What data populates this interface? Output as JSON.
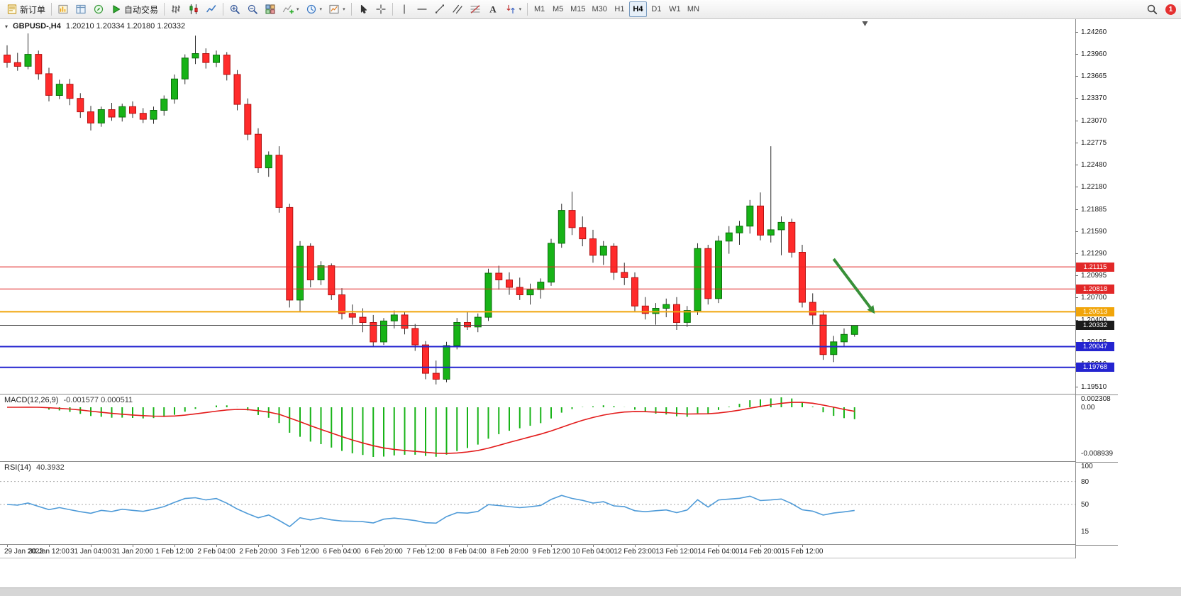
{
  "toolbar": {
    "buttons": [
      {
        "name": "new-order",
        "icon": "new-order",
        "label": "新订单"
      },
      {
        "sep": true
      },
      {
        "name": "market-watch",
        "icon": "market-watch"
      },
      {
        "name": "data-window",
        "icon": "data-window"
      },
      {
        "name": "navigator",
        "icon": "navigator"
      },
      {
        "name": "autotrade",
        "icon": "autotrade-play",
        "label": "自动交易"
      },
      {
        "sep": true
      },
      {
        "name": "chart-bars",
        "icon": "chart-bars"
      },
      {
        "name": "chart-candles",
        "icon": "chart-candles"
      },
      {
        "name": "chart-line",
        "icon": "chart-line"
      },
      {
        "sep": true
      },
      {
        "name": "zoom-in",
        "icon": "zoom-in"
      },
      {
        "name": "zoom-out",
        "icon": "zoom-out"
      },
      {
        "name": "tile-windows",
        "icon": "tile-windows"
      },
      {
        "name": "indicators",
        "icon": "indicators-add",
        "caret": true
      },
      {
        "name": "periods",
        "icon": "periods-clock",
        "caret": true
      },
      {
        "name": "templates",
        "icon": "template-chart",
        "caret": true
      },
      {
        "sep": true
      },
      {
        "name": "cursor",
        "icon": "cursor"
      },
      {
        "name": "crosshair",
        "icon": "crosshair"
      },
      {
        "sep": true
      },
      {
        "name": "vertical-line",
        "icon": "vline"
      },
      {
        "name": "horizontal-line",
        "icon": "hline"
      },
      {
        "name": "trendline",
        "icon": "trendline"
      },
      {
        "name": "equidistant-channel",
        "icon": "channel"
      },
      {
        "name": "fibonacci",
        "icon": "fibonacci"
      },
      {
        "name": "text-label",
        "icon": "text-tool"
      },
      {
        "name": "arrows",
        "icon": "arrows-tool",
        "caret": true
      },
      {
        "sep": true
      }
    ],
    "timeframes": [
      "M1",
      "M5",
      "M15",
      "M30",
      "H1",
      "H4",
      "D1",
      "W1",
      "MN"
    ],
    "active_timeframe": "H4",
    "notification_count": "1"
  },
  "chart_data": [
    {
      "type": "candlestick",
      "symbol_title": "GBPUSD-,H4",
      "ohlc_text": "1.20210 1.20334 1.20180 1.20332",
      "x_labels": [
        "29 Jan 2023",
        "30 Jan 12:00",
        "31 Jan 04:00",
        "31 Jan 20:00",
        "1 Feb 12:00",
        "2 Feb 04:00",
        "2 Feb 20:00",
        "3 Feb 12:00",
        "6 Feb 04:00",
        "6 Feb 20:00",
        "7 Feb 12:00",
        "8 Feb 04:00",
        "8 Feb 20:00",
        "9 Feb 12:00",
        "10 Feb 04:00",
        "12 Feb 23:00",
        "13 Feb 12:00",
        "14 Feb 04:00",
        "14 Feb 20:00",
        "15 Feb 12:00"
      ],
      "y_axis_labels": [
        "1.24260",
        "1.23960",
        "1.23665",
        "1.23370",
        "1.23070",
        "1.22775",
        "1.22480",
        "1.22180",
        "1.21885",
        "1.21590",
        "1.21290",
        "1.20995",
        "1.20700",
        "1.20400",
        "1.20105",
        "1.19810",
        "1.19510"
      ],
      "candles": [
        [
          1.2395,
          1.2408,
          1.2378,
          1.2385
        ],
        [
          1.2385,
          1.2398,
          1.2374,
          1.238
        ],
        [
          1.238,
          1.2424,
          1.2376,
          1.2396
        ],
        [
          1.2396,
          1.2401,
          1.2362,
          1.237
        ],
        [
          1.237,
          1.2378,
          1.2333,
          1.2341
        ],
        [
          1.2341,
          1.2362,
          1.2336,
          1.2356
        ],
        [
          1.2356,
          1.2363,
          1.2328,
          1.2337
        ],
        [
          1.2337,
          1.2344,
          1.2311,
          1.2319
        ],
        [
          1.2319,
          1.2327,
          1.2294,
          1.2304
        ],
        [
          1.2304,
          1.2326,
          1.2299,
          1.2322
        ],
        [
          1.2322,
          1.2331,
          1.2307,
          1.2312
        ],
        [
          1.2312,
          1.233,
          1.2306,
          1.2326
        ],
        [
          1.2326,
          1.2333,
          1.2311,
          1.2317
        ],
        [
          1.2317,
          1.2324,
          1.2304,
          1.2309
        ],
        [
          1.2309,
          1.2326,
          1.2303,
          1.2321
        ],
        [
          1.2321,
          1.2341,
          1.2314,
          1.2336
        ],
        [
          1.2336,
          1.2369,
          1.233,
          1.2363
        ],
        [
          1.2363,
          1.2396,
          1.2356,
          1.2391
        ],
        [
          1.2391,
          1.2421,
          1.2383,
          1.2397
        ],
        [
          1.2397,
          1.2404,
          1.2377,
          1.2385
        ],
        [
          1.2385,
          1.2401,
          1.2379,
          1.2395
        ],
        [
          1.2395,
          1.2399,
          1.2361,
          1.2369
        ],
        [
          1.2369,
          1.2375,
          1.2321,
          1.2329
        ],
        [
          1.2329,
          1.2337,
          1.2281,
          1.2289
        ],
        [
          1.2289,
          1.2297,
          1.2237,
          1.2244
        ],
        [
          1.2244,
          1.2266,
          1.2232,
          1.2261
        ],
        [
          1.2261,
          1.2273,
          1.2184,
          1.2191
        ],
        [
          1.2191,
          1.2196,
          1.2057,
          1.2067
        ],
        [
          1.2067,
          1.2146,
          1.2051,
          1.2139
        ],
        [
          1.2139,
          1.2143,
          1.2084,
          1.2094
        ],
        [
          1.2094,
          1.2119,
          1.2087,
          1.2113
        ],
        [
          1.2113,
          1.2116,
          1.2067,
          1.2074
        ],
        [
          1.2074,
          1.2083,
          1.2041,
          1.2049
        ],
        [
          1.2049,
          1.2061,
          1.2034,
          1.2044
        ],
        [
          1.2044,
          1.2056,
          1.2024,
          1.2037
        ],
        [
          1.2037,
          1.2047,
          1.2004,
          1.2011
        ],
        [
          1.2011,
          1.2043,
          1.2007,
          1.2039
        ],
        [
          1.2039,
          1.2053,
          1.2029,
          1.2047
        ],
        [
          1.2047,
          1.2051,
          1.2021,
          1.2029
        ],
        [
          1.2029,
          1.2035,
          1.1999,
          1.2007
        ],
        [
          1.2007,
          1.2012,
          1.1961,
          1.1969
        ],
        [
          1.1969,
          1.1986,
          1.1954,
          1.1961
        ],
        [
          1.1961,
          1.2011,
          1.1957,
          1.2006
        ],
        [
          1.2006,
          1.2043,
          1.2001,
          1.2037
        ],
        [
          1.2037,
          1.2051,
          1.2027,
          1.2031
        ],
        [
          1.2031,
          1.2049,
          1.2024,
          1.2044
        ],
        [
          1.2044,
          1.2109,
          1.2039,
          1.2103
        ],
        [
          1.2103,
          1.2113,
          1.2081,
          1.2094
        ],
        [
          1.2094,
          1.2104,
          1.2074,
          1.2084
        ],
        [
          1.2084,
          1.2097,
          1.2067,
          1.2074
        ],
        [
          1.2074,
          1.2089,
          1.2061,
          1.2081
        ],
        [
          1.2081,
          1.2096,
          1.2069,
          1.2091
        ],
        [
          1.2091,
          1.2149,
          1.2086,
          1.2143
        ],
        [
          1.2143,
          1.2196,
          1.2137,
          1.2187
        ],
        [
          1.2187,
          1.2212,
          1.2154,
          1.2164
        ],
        [
          1.2164,
          1.2179,
          1.2139,
          1.2149
        ],
        [
          1.2149,
          1.2161,
          1.2117,
          1.2127
        ],
        [
          1.2127,
          1.2146,
          1.2114,
          1.2139
        ],
        [
          1.2139,
          1.2143,
          1.2094,
          1.2104
        ],
        [
          1.2104,
          1.2117,
          1.2087,
          1.2097
        ],
        [
          1.2097,
          1.2104,
          1.2051,
          1.2059
        ],
        [
          1.2059,
          1.2071,
          1.2041,
          1.2049
        ],
        [
          1.2049,
          1.2063,
          1.2034,
          1.2056
        ],
        [
          1.2056,
          1.2069,
          1.2044,
          1.2061
        ],
        [
          1.2061,
          1.2071,
          1.2027,
          1.2037
        ],
        [
          1.2037,
          1.2059,
          1.2031,
          1.2053
        ],
        [
          1.2053,
          1.2143,
          1.2047,
          1.2136
        ],
        [
          1.2136,
          1.2141,
          1.2061,
          1.2069
        ],
        [
          1.2069,
          1.2153,
          1.2063,
          1.2146
        ],
        [
          1.2146,
          1.2166,
          1.2129,
          1.2157
        ],
        [
          1.2157,
          1.2173,
          1.2141,
          1.2166
        ],
        [
          1.2166,
          1.2201,
          1.2156,
          1.2193
        ],
        [
          1.2193,
          1.2211,
          1.2147,
          1.2154
        ],
        [
          1.2154,
          1.2273,
          1.2144,
          1.2161
        ],
        [
          1.2161,
          1.2179,
          1.2127,
          1.2171
        ],
        [
          1.2171,
          1.2176,
          1.2124,
          1.2131
        ],
        [
          1.2131,
          1.2141,
          1.2057,
          1.2064
        ],
        [
          1.2064,
          1.2076,
          1.2034,
          1.2047
        ],
        [
          1.2047,
          1.2053,
          1.1987,
          1.1994
        ],
        [
          1.1994,
          1.2019,
          1.1984,
          1.2011
        ],
        [
          1.2011,
          1.2029,
          1.2004,
          1.2021
        ],
        [
          1.2021,
          1.20334,
          1.2018,
          1.20332
        ]
      ],
      "levels": [
        {
          "price": 1.21115,
          "label": "1.21115",
          "color": "#e22828",
          "width": 1
        },
        {
          "price": 1.20818,
          "label": "1.20818",
          "color": "#e22828",
          "width": 1
        },
        {
          "price": 1.20513,
          "label": "1.20513",
          "color": "#f1a50a",
          "width": 2
        },
        {
          "price": 1.20047,
          "label": "1.20047",
          "color": "#2424d0",
          "width": 2
        },
        {
          "price": 1.19768,
          "label": "1.19768",
          "color": "#2424d0",
          "width": 2
        }
      ],
      "current_price": {
        "price": 1.20332,
        "label": "1.20332",
        "color": "#1b1b1b"
      },
      "annotations": {
        "arrow": {
          "from_index": 79,
          "from_price": 1.2122,
          "to_index": 82.5,
          "to_price": 1.2057,
          "color": "#389038"
        },
        "shift_marker_index": 82
      }
    },
    {
      "type": "macd-histogram",
      "label": "MACD(12,26,9)",
      "values_text": "-0.001577 0.000511",
      "axis_labels": [
        "0.002308",
        "0.00",
        "-0.008939"
      ]
    },
    {
      "type": "line",
      "label": "RSI(14)",
      "value_text": "40.3932",
      "axis_labels": [
        "100",
        "80",
        "50",
        "15"
      ],
      "levels": [
        80,
        50
      ]
    }
  ]
}
